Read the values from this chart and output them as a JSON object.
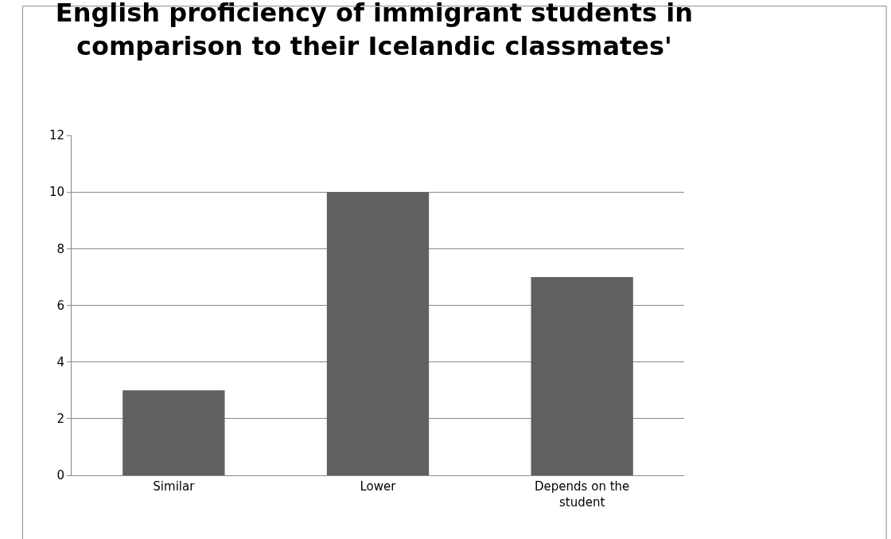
{
  "chart_data": {
    "type": "bar",
    "title": "English proficiency of immigrant students in comparison to their Icelandic classmates'",
    "categories": [
      "Similar",
      "Lower",
      "Depends on the student"
    ],
    "values": [
      3,
      10,
      7
    ],
    "color": "#606060",
    "ylim": [
      0,
      12
    ],
    "yticks": [
      0,
      2,
      4,
      6,
      8,
      10,
      12
    ],
    "grid": "y",
    "legend": false
  }
}
